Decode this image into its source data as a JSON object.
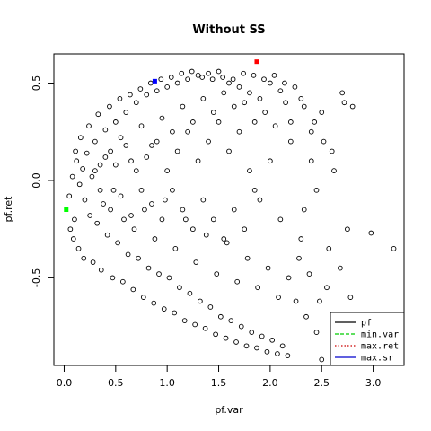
{
  "chart_data": {
    "type": "scatter",
    "title": "Without SS",
    "xlabel": "pf.var",
    "ylabel": "pf.ret",
    "xlim": [
      -0.1,
      3.3
    ],
    "ylim": [
      -0.95,
      0.65
    ],
    "xticks": [
      0.0,
      0.5,
      1.0,
      1.5,
      2.0,
      2.5,
      3.0
    ],
    "xtick_labels": [
      "0.0",
      "0.5",
      "1.0",
      "1.5",
      "2.0",
      "2.5",
      "3.0"
    ],
    "yticks": [
      -0.5,
      0.0,
      0.5
    ],
    "ytick_labels": [
      "-0.5",
      "0.0",
      "0.5"
    ],
    "grid": false,
    "legend_position": "bottom-right",
    "legend": [
      {
        "label": "pf",
        "color": "#000000",
        "style": "solid"
      },
      {
        "label": "min.var",
        "color": "#00cc00",
        "style": "dashed"
      },
      {
        "label": "max.ret",
        "color": "#cc0000",
        "style": "dotted"
      },
      {
        "label": "max.sr",
        "color": "#0000cc",
        "style": "solid"
      }
    ],
    "highlight_points": [
      {
        "name": "min.var",
        "x": 0.02,
        "y": -0.15,
        "color": "#00ff00"
      },
      {
        "name": "max.ret",
        "x": 1.87,
        "y": 0.61,
        "color": "#ff0000"
      },
      {
        "name": "max.sr",
        "x": 0.88,
        "y": 0.51,
        "color": "#0000ff"
      }
    ],
    "series": [
      {
        "name": "pf",
        "marker": "open-circle",
        "points": [
          [
            0.15,
            -0.02
          ],
          [
            0.18,
            0.06
          ],
          [
            0.2,
            -0.1
          ],
          [
            0.22,
            0.14
          ],
          [
            0.25,
            -0.18
          ],
          [
            0.27,
            0.02
          ],
          [
            0.3,
            0.2
          ],
          [
            0.32,
            -0.22
          ],
          [
            0.35,
            0.08
          ],
          [
            0.38,
            -0.12
          ],
          [
            0.4,
            0.26
          ],
          [
            0.42,
            -0.28
          ],
          [
            0.45,
            0.15
          ],
          [
            0.48,
            -0.05
          ],
          [
            0.5,
            0.3
          ],
          [
            0.52,
            -0.32
          ],
          [
            0.55,
            0.22
          ],
          [
            0.58,
            -0.2
          ],
          [
            0.6,
            0.35
          ],
          [
            0.62,
            -0.38
          ],
          [
            0.65,
            0.1
          ],
          [
            0.68,
            -0.25
          ],
          [
            0.7,
            0.4
          ],
          [
            0.72,
            -0.4
          ],
          [
            0.75,
            0.28
          ],
          [
            0.78,
            -0.15
          ],
          [
            0.8,
            0.44
          ],
          [
            0.82,
            -0.45
          ],
          [
            0.85,
            0.18
          ],
          [
            0.88,
            -0.3
          ],
          [
            0.9,
            0.46
          ],
          [
            0.92,
            -0.48
          ],
          [
            0.95,
            0.32
          ],
          [
            0.98,
            -0.1
          ],
          [
            1.0,
            0.48
          ],
          [
            1.02,
            -0.5
          ],
          [
            1.05,
            0.25
          ],
          [
            1.08,
            -0.35
          ],
          [
            1.1,
            0.5
          ],
          [
            1.12,
            -0.55
          ],
          [
            1.15,
            0.38
          ],
          [
            1.18,
            -0.2
          ],
          [
            1.2,
            0.52
          ],
          [
            1.22,
            -0.58
          ],
          [
            1.25,
            0.3
          ],
          [
            1.28,
            -0.42
          ],
          [
            1.3,
            0.54
          ],
          [
            1.32,
            -0.62
          ],
          [
            1.35,
            0.42
          ],
          [
            1.38,
            -0.28
          ],
          [
            1.4,
            0.55
          ],
          [
            1.42,
            -0.65
          ],
          [
            1.45,
            0.35
          ],
          [
            1.48,
            -0.48
          ],
          [
            1.5,
            0.56
          ],
          [
            1.52,
            -0.7
          ],
          [
            1.55,
            0.45
          ],
          [
            1.58,
            -0.32
          ],
          [
            1.6,
            0.5
          ],
          [
            1.62,
            -0.72
          ],
          [
            1.65,
            0.38
          ],
          [
            1.68,
            -0.52
          ],
          [
            1.7,
            0.48
          ],
          [
            1.72,
            -0.75
          ],
          [
            1.75,
            0.4
          ],
          [
            1.78,
            -0.4
          ],
          [
            1.8,
            0.45
          ],
          [
            1.82,
            -0.78
          ],
          [
            1.85,
            0.3
          ],
          [
            1.88,
            -0.55
          ],
          [
            1.9,
            0.42
          ],
          [
            1.92,
            -0.8
          ],
          [
            1.95,
            0.35
          ],
          [
            1.98,
            -0.45
          ],
          [
            2.0,
            0.5
          ],
          [
            2.02,
            -0.82
          ],
          [
            2.05,
            0.28
          ],
          [
            2.08,
            -0.6
          ],
          [
            2.1,
            0.46
          ],
          [
            2.12,
            -0.85
          ],
          [
            2.15,
            0.4
          ],
          [
            2.18,
            -0.5
          ],
          [
            2.2,
            0.3
          ],
          [
            2.25,
            -0.62
          ],
          [
            2.3,
            0.42
          ],
          [
            2.35,
            -0.7
          ],
          [
            2.4,
            0.25
          ],
          [
            2.45,
            -0.78
          ],
          [
            2.5,
            0.35
          ],
          [
            2.55,
            -0.55
          ],
          [
            2.6,
            0.15
          ],
          [
            2.65,
            -0.88
          ],
          [
            2.7,
            0.45
          ],
          [
            2.75,
            -0.25
          ],
          [
            2.8,
            0.38
          ],
          [
            2.98,
            -0.27
          ],
          [
            3.2,
            -0.35
          ],
          [
            2.5,
            -0.92
          ],
          [
            2.4,
            0.1
          ],
          [
            2.3,
            -0.3
          ],
          [
            2.2,
            0.2
          ],
          [
            2.1,
            -0.2
          ],
          [
            2.0,
            0.1
          ],
          [
            1.9,
            -0.1
          ],
          [
            0.05,
            -0.08
          ],
          [
            0.08,
            0.02
          ],
          [
            0.1,
            -0.2
          ],
          [
            0.12,
            0.1
          ],
          [
            0.06,
            -0.25
          ],
          [
            0.09,
            -0.3
          ],
          [
            0.11,
            0.15
          ],
          [
            0.14,
            -0.35
          ],
          [
            0.16,
            0.22
          ],
          [
            0.19,
            -0.4
          ],
          [
            0.24,
            0.28
          ],
          [
            0.28,
            -0.42
          ],
          [
            0.33,
            0.34
          ],
          [
            0.36,
            -0.46
          ],
          [
            0.44,
            0.38
          ],
          [
            0.47,
            -0.5
          ],
          [
            0.54,
            0.42
          ],
          [
            0.57,
            -0.52
          ],
          [
            0.64,
            0.44
          ],
          [
            0.67,
            -0.56
          ],
          [
            0.74,
            0.47
          ],
          [
            0.77,
            -0.6
          ],
          [
            0.84,
            0.5
          ],
          [
            0.87,
            -0.63
          ],
          [
            0.94,
            0.52
          ],
          [
            0.97,
            -0.66
          ],
          [
            1.04,
            0.53
          ],
          [
            1.07,
            -0.68
          ],
          [
            1.14,
            0.55
          ],
          [
            1.17,
            -0.72
          ],
          [
            1.24,
            0.56
          ],
          [
            1.27,
            -0.74
          ],
          [
            1.34,
            0.53
          ],
          [
            1.37,
            -0.76
          ],
          [
            1.44,
            0.52
          ],
          [
            1.47,
            -0.79
          ],
          [
            1.54,
            0.53
          ],
          [
            1.57,
            -0.81
          ],
          [
            1.64,
            0.52
          ],
          [
            1.67,
            -0.83
          ],
          [
            1.74,
            0.55
          ],
          [
            1.77,
            -0.85
          ],
          [
            1.84,
            0.54
          ],
          [
            1.87,
            -0.86
          ],
          [
            1.94,
            0.52
          ],
          [
            1.97,
            -0.88
          ],
          [
            2.04,
            0.54
          ],
          [
            2.07,
            -0.89
          ],
          [
            2.14,
            0.5
          ],
          [
            2.17,
            -0.9
          ],
          [
            2.24,
            0.48
          ],
          [
            2.28,
            -0.4
          ],
          [
            2.33,
            0.38
          ],
          [
            2.38,
            -0.48
          ],
          [
            2.43,
            0.3
          ],
          [
            2.48,
            -0.62
          ],
          [
            2.52,
            0.2
          ],
          [
            2.57,
            -0.35
          ],
          [
            2.62,
            0.05
          ],
          [
            2.68,
            -0.45
          ],
          [
            2.72,
            0.4
          ],
          [
            2.78,
            -0.6
          ],
          [
            2.33,
            -0.15
          ],
          [
            2.45,
            -0.05
          ],
          [
            0.3,
            0.05
          ],
          [
            0.35,
            -0.05
          ],
          [
            0.4,
            0.12
          ],
          [
            0.45,
            -0.15
          ],
          [
            0.5,
            0.08
          ],
          [
            0.55,
            -0.08
          ],
          [
            0.6,
            0.18
          ],
          [
            0.65,
            -0.18
          ],
          [
            0.7,
            0.05
          ],
          [
            0.75,
            -0.05
          ],
          [
            0.8,
            0.12
          ],
          [
            0.85,
            -0.12
          ],
          [
            0.9,
            0.2
          ],
          [
            0.95,
            -0.2
          ],
          [
            1.0,
            0.05
          ],
          [
            1.05,
            -0.05
          ],
          [
            1.1,
            0.15
          ],
          [
            1.15,
            -0.15
          ],
          [
            1.2,
            0.25
          ],
          [
            1.25,
            -0.25
          ],
          [
            1.3,
            0.1
          ],
          [
            1.35,
            -0.1
          ],
          [
            1.4,
            0.2
          ],
          [
            1.45,
            -0.2
          ],
          [
            1.5,
            0.3
          ],
          [
            1.55,
            -0.3
          ],
          [
            1.6,
            0.15
          ],
          [
            1.65,
            -0.15
          ],
          [
            1.7,
            0.25
          ],
          [
            1.75,
            -0.25
          ],
          [
            1.8,
            0.05
          ],
          [
            1.85,
            -0.05
          ]
        ]
      }
    ]
  }
}
